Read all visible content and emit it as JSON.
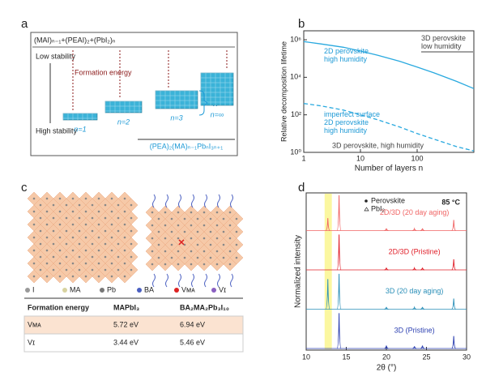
{
  "panel_labels": [
    "a",
    "b",
    "c",
    "d"
  ],
  "panel_a": {
    "reactants": "(MAI)ₙ₋₁+(PEAI)₂+(PbI₂)ₙ",
    "low_stability": "Low stability",
    "high_stability": "High stability",
    "formation_energy": "Formation energy",
    "phases": [
      "n=1",
      "n=2",
      "n=3",
      "n=∞"
    ],
    "bracket_label": "n",
    "formula": "(PEA)₂(MA)ₙ₋₁PbₙI₃ₙ₊₁"
  },
  "panel_c": {
    "legend": [
      "I",
      "MA",
      "Pb",
      "BA",
      "Vᴍᴀ",
      "Vɪ"
    ],
    "table": {
      "header": [
        "Formation energy",
        "MAPbI₃",
        "BA₂MA₂Pb₃I₁₀"
      ],
      "rows": [
        [
          "Vᴍᴀ",
          "5.72 eV",
          "6.94 eV"
        ],
        [
          "Vɪ",
          "3.44 eV",
          "5.46 eV"
        ]
      ]
    }
  },
  "chart_data": [
    {
      "type": "line",
      "xlabel": "Number of layers n",
      "ylabel": "Relative decomposition lifetime",
      "log_x": true,
      "log_y": true,
      "xlim": [
        1,
        1000
      ],
      "xticks": [
        1,
        10,
        100
      ],
      "ylim": [
        1,
        3000000
      ],
      "yticks": [
        {
          "value": 1,
          "label": "10⁰"
        },
        {
          "value": 100,
          "label": "10²"
        },
        {
          "value": 10000,
          "label": "10⁴"
        },
        {
          "value": 1000000,
          "label": "10⁶"
        }
      ],
      "x": [
        1,
        2,
        5,
        10,
        20,
        50,
        100,
        200,
        500,
        1000
      ],
      "series": [
        {
          "name": "2D perovskite high humidity",
          "color": "#29a9df",
          "dash": false,
          "values": [
            800000,
            600000,
            400000,
            250000,
            150000,
            70000,
            35000,
            17000,
            6000,
            2500
          ]
        },
        {
          "name": "imperfect surface 2D perovskite high humidity",
          "color": "#29a9df",
          "dash": true,
          "values": [
            400,
            300,
            180,
            100,
            55,
            22,
            10,
            5,
            2,
            1.2
          ]
        }
      ],
      "annotations": [
        "3D perovskite low humidity",
        "3D perovskite, high humidity"
      ]
    },
    {
      "type": "spectra",
      "xlabel": "2θ (°)",
      "ylabel": "Normalized intensity",
      "xlim": [
        10,
        30
      ],
      "xticks": [
        10,
        15,
        20,
        25,
        30
      ],
      "ylim": [
        0,
        4.8
      ],
      "highlight": [
        12.3,
        13.2
      ],
      "markers": [
        "Perovskite",
        "PbI₂"
      ],
      "condition": "85 °C",
      "series": [
        {
          "name": "3D (Pristine)",
          "color": "#2b3fb0",
          "x": [
            14.1,
            20.0,
            23.5,
            24.5,
            28.4
          ],
          "values": [
            1.0,
            0.08,
            0.06,
            0.08,
            0.35
          ]
        },
        {
          "name": "3D (20 day aging)",
          "color": "#2a8fb8",
          "x": [
            12.7,
            14.1,
            20.0,
            23.5,
            24.5,
            28.4
          ],
          "values": [
            0.85,
            1.0,
            0.06,
            0.05,
            0.06,
            0.3
          ]
        },
        {
          "name": "2D/3D (Pristine)",
          "color": "#e0202a",
          "x": [
            14.1,
            20.0,
            23.5,
            24.5,
            28.4
          ],
          "values": [
            1.0,
            0.06,
            0.05,
            0.06,
            0.3
          ]
        },
        {
          "name": "2D/3D (20 day aging)",
          "color": "#f06464",
          "x": [
            12.7,
            14.1,
            20.0,
            23.5,
            24.5,
            28.4
          ],
          "values": [
            0.35,
            1.0,
            0.06,
            0.05,
            0.06,
            0.3
          ]
        }
      ]
    }
  ]
}
